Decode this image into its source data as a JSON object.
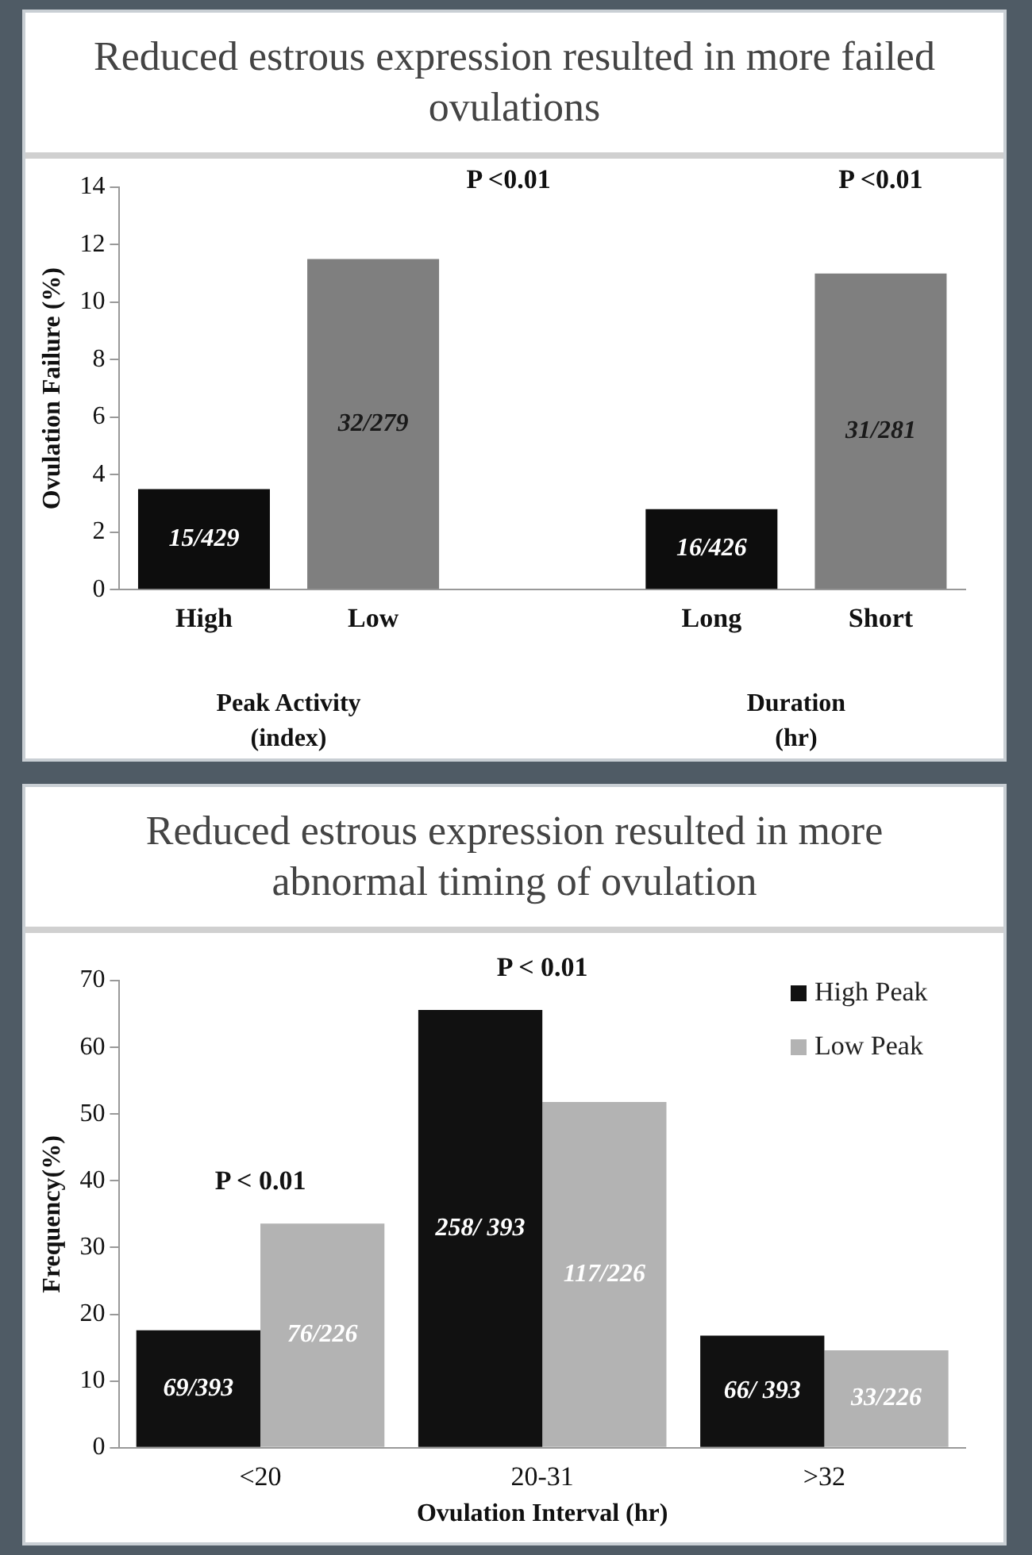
{
  "chart_data": [
    {
      "type": "bar",
      "title": "Reduced estrous expression resulted in more failed ovulations",
      "ylabel": "Ovulation Failure (%)",
      "categories": [
        "High",
        "Low",
        null,
        "Long",
        "Short"
      ],
      "values": [
        3.5,
        11.5,
        null,
        2.8,
        11.0
      ],
      "colors": [
        "#0d0d0d",
        "#7f7f7f",
        "#7f7f7f",
        "#0d0d0d",
        "#7f7f7f"
      ],
      "value_labels": [
        "15/429",
        "32/279",
        null,
        "16/426",
        "31/281"
      ],
      "ylim": [
        0,
        14
      ],
      "yticks": [
        0,
        2,
        4,
        6,
        8,
        10,
        12,
        14
      ],
      "grid": false,
      "legend": false,
      "annotations": [
        "P <0.01",
        "P <0.01",
        "Peak Activity (index)",
        "Duration (hr)"
      ]
    },
    {
      "type": "bar",
      "title": "Reduced estrous expression resulted in more abnormal timing of ovulation",
      "xlabel": "Ovulation Interval (hr)",
      "ylabel": "Frequency(%)",
      "categories": [
        "<20",
        "20-31",
        ">32"
      ],
      "series": [
        {
          "name": "High Peak",
          "color": "#111111",
          "values": [
            17.6,
            65.6,
            16.8
          ],
          "value_labels": [
            "69/393",
            "258/ 393",
            "66/ 393"
          ]
        },
        {
          "name": "Low Peak",
          "color": "#b3b3b3",
          "values": [
            33.6,
            51.8,
            14.6
          ],
          "value_labels": [
            "76/226",
            "117/226",
            "33/226"
          ]
        }
      ],
      "ylim": [
        0,
        70
      ],
      "yticks": [
        0,
        10,
        20,
        30,
        40,
        50,
        60,
        70
      ],
      "grid": false,
      "legend": "top right",
      "annotations": [
        {
          "text": "P < 0.01",
          "x": "<20",
          "y": 33.6
        },
        {
          "text": "P < 0.01",
          "x": "20-31",
          "y": 65.6
        }
      ]
    }
  ]
}
